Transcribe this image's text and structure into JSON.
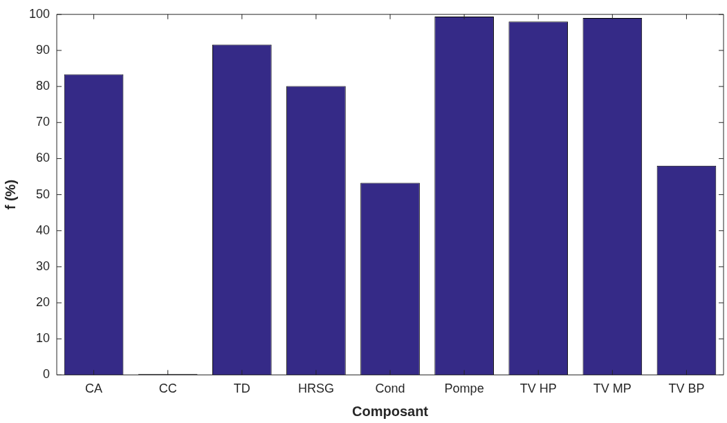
{
  "chart_data": {
    "type": "bar",
    "xlabel": "Composant",
    "ylabel": "f (%)",
    "categories": [
      "CA",
      "CC",
      "TD",
      "HRSG",
      "Cond",
      "Pompe",
      "TV HP",
      "TV MP",
      "TV BP"
    ],
    "values": [
      83.4,
      0.2,
      91.6,
      80.1,
      53.3,
      99.4,
      98,
      99,
      58
    ],
    "color": "#352a87",
    "ylim": [
      0,
      100
    ],
    "yticks": [
      0,
      10,
      20,
      30,
      40,
      50,
      60,
      70,
      80,
      90,
      100
    ],
    "grid": false,
    "legend": false
  }
}
